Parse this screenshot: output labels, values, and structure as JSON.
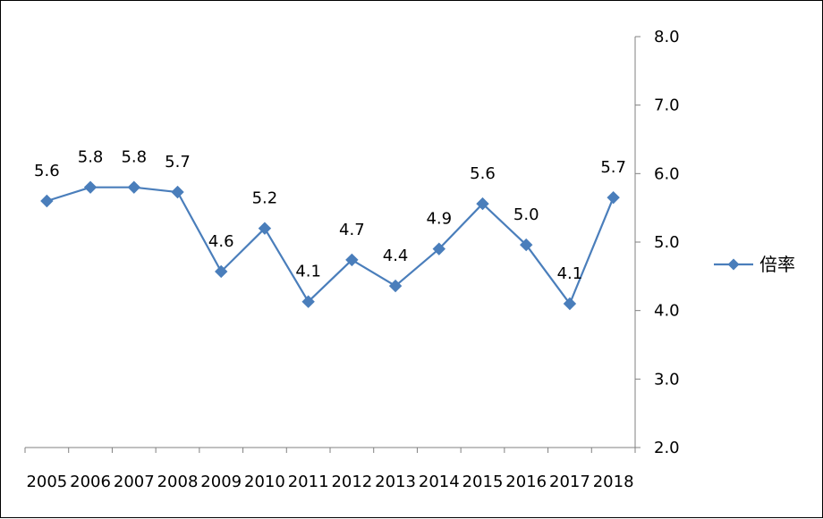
{
  "chart_data": {
    "type": "line",
    "categories": [
      "2005",
      "2006",
      "2007",
      "2008",
      "2009",
      "2010",
      "2011",
      "2012",
      "2013",
      "2014",
      "2015",
      "2016",
      "2017",
      "2018"
    ],
    "series": [
      {
        "name": "倍率",
        "values": [
          5.6,
          5.8,
          5.8,
          5.73,
          4.57,
          5.2,
          4.13,
          4.74,
          4.36,
          4.9,
          5.56,
          4.96,
          4.1,
          5.65
        ],
        "labels": [
          "5.6",
          "5.8",
          "5.8",
          "5.7",
          "4.6",
          "5.2",
          "4.1",
          "4.7",
          "4.4",
          "4.9",
          "5.6",
          "5.0",
          "4.1",
          "5.7"
        ]
      }
    ],
    "y_ticks": [
      "2.0",
      "3.0",
      "4.0",
      "5.0",
      "6.0",
      "7.0",
      "8.0"
    ],
    "ylim": [
      2.0,
      8.0
    ],
    "y_axis_side": "right",
    "legend_position": "right",
    "marker": "diamond",
    "color": "#4a7ebb",
    "grid": false
  }
}
